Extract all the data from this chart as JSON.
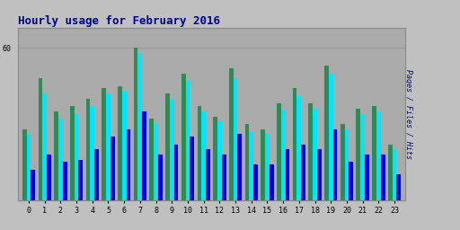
{
  "title": "Hourly usage for February 2016",
  "ylabel": "Pages / Files / Hits",
  "hours": [
    0,
    1,
    2,
    3,
    4,
    5,
    6,
    7,
    8,
    9,
    10,
    11,
    12,
    13,
    14,
    15,
    16,
    17,
    18,
    19,
    20,
    21,
    22,
    23
  ],
  "pages": [
    28,
    48,
    35,
    37,
    40,
    44,
    45,
    60,
    32,
    42,
    50,
    37,
    33,
    52,
    30,
    28,
    38,
    44,
    38,
    53,
    30,
    36,
    37,
    22
  ],
  "files": [
    26,
    42,
    32,
    34,
    37,
    42,
    43,
    58,
    30,
    40,
    47,
    35,
    31,
    48,
    27,
    26,
    36,
    41,
    36,
    50,
    28,
    34,
    35,
    20
  ],
  "hits": [
    12,
    18,
    15,
    16,
    20,
    25,
    28,
    35,
    18,
    22,
    25,
    20,
    18,
    26,
    14,
    14,
    20,
    22,
    20,
    28,
    15,
    18,
    18,
    10
  ],
  "color_pages": "#2e8b57",
  "color_files": "#00e5ff",
  "color_hits": "#0000cd",
  "background_color": "#c0c0c0",
  "plot_background": "#aaaaaa",
  "title_color": "#00008b",
  "ylabel_color": "#00008b",
  "grid_color": "#999999",
  "ylim": [
    0,
    68
  ],
  "ytick_val": 60,
  "bar_width": 0.27
}
